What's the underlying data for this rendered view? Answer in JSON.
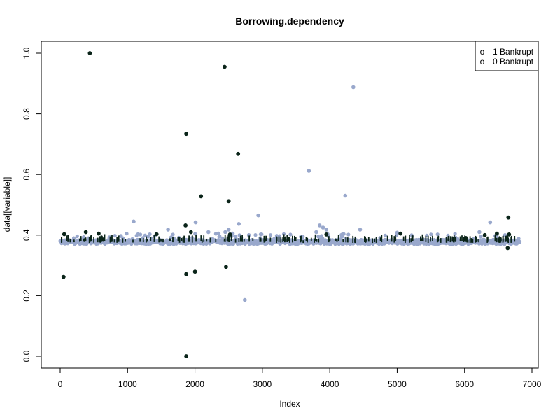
{
  "chart_data": {
    "type": "scatter",
    "title": "Borrowing.dependency",
    "xlabel": "Index",
    "ylabel": "data[[variable]]",
    "xlim": [
      0,
      7000
    ],
    "ylim": [
      0,
      1
    ],
    "x_ticks": [
      "0",
      "1000",
      "2000",
      "3000",
      "4000",
      "5000",
      "6000",
      "7000"
    ],
    "y_ticks": [
      "0.0",
      "0.2",
      "0.4",
      "0.6",
      "0.8",
      "1.0"
    ],
    "x_tick_values": [
      0,
      1000,
      2000,
      3000,
      4000,
      5000,
      6000,
      7000
    ],
    "y_tick_values": [
      0,
      0.2,
      0.4,
      0.6,
      0.8,
      1.0
    ],
    "grid": false,
    "legend": {
      "position": "top-right",
      "symbol": "o",
      "entries": [
        "1 Bankrupt",
        "0 Bankrupt"
      ]
    },
    "n_points": 6819,
    "series": [
      {
        "name": "0 Bankrupt",
        "color": "#99a8cc",
        "band": {
          "low": 0.37,
          "high": 0.385
        },
        "points": [
          [
            1090,
            0.445
          ],
          [
            1600,
            0.418
          ],
          [
            2010,
            0.442
          ],
          [
            2500,
            0.418
          ],
          [
            2650,
            0.437
          ],
          [
            2740,
            0.186
          ],
          [
            2940,
            0.465
          ],
          [
            3690,
            0.612
          ],
          [
            3850,
            0.432
          ],
          [
            3900,
            0.425
          ],
          [
            3950,
            0.418
          ],
          [
            4230,
            0.53
          ],
          [
            4350,
            0.888
          ],
          [
            4450,
            0.418
          ],
          [
            5000,
            0.408
          ],
          [
            6380,
            0.442
          ],
          [
            6220,
            0.41
          ],
          [
            6600,
            0.4
          ],
          [
            6480,
            0.395
          ],
          [
            3800,
            0.41
          ],
          [
            350,
            0.393
          ],
          [
            900,
            0.397
          ],
          [
            1300,
            0.395
          ],
          [
            2200,
            0.41
          ],
          [
            2350,
            0.405
          ],
          [
            2450,
            0.41
          ],
          [
            2560,
            0.405
          ],
          [
            2800,
            0.4
          ],
          [
            3600,
            0.395
          ],
          [
            4180,
            0.395
          ]
        ]
      },
      {
        "name": "1 Bankrupt",
        "color": "#0a2419",
        "points": [
          [
            440,
            1.0
          ],
          [
            50,
            0.262
          ],
          [
            2440,
            0.955
          ],
          [
            1870,
            0.734
          ],
          [
            2640,
            0.668
          ],
          [
            2090,
            0.528
          ],
          [
            2500,
            0.512
          ],
          [
            1860,
            0.432
          ],
          [
            2460,
            0.295
          ],
          [
            1870,
            0.271
          ],
          [
            2000,
            0.279
          ],
          [
            1870,
            0.0
          ],
          [
            1940,
            0.41
          ],
          [
            6650,
            0.458
          ],
          [
            6640,
            0.357
          ],
          [
            6660,
            0.402
          ],
          [
            380,
            0.41
          ],
          [
            60,
            0.403
          ],
          [
            570,
            0.405
          ],
          [
            1430,
            0.403
          ],
          [
            3950,
            0.402
          ],
          [
            5050,
            0.405
          ],
          [
            6480,
            0.405
          ],
          [
            6300,
            0.4
          ],
          [
            2520,
            0.402
          ]
        ]
      }
    ]
  }
}
